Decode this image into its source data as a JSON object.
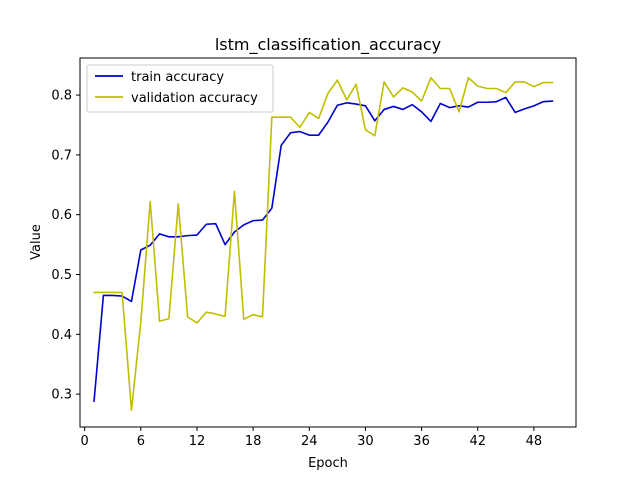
{
  "chart_data": {
    "type": "line",
    "title": "lstm_classification_accuracy",
    "xlabel": "Epoch",
    "ylabel": "Value",
    "xlim": [
      -0.5,
      52.5
    ],
    "ylim": [
      0.245,
      0.862
    ],
    "xticks": [
      0,
      6,
      12,
      18,
      24,
      30,
      36,
      42,
      48
    ],
    "yticks": [
      0.3,
      0.4,
      0.5,
      0.6,
      0.7,
      0.8
    ],
    "grid": false,
    "legend_position": "top-left",
    "x": [
      1,
      2,
      3,
      4,
      5,
      6,
      7,
      8,
      9,
      10,
      11,
      12,
      13,
      14,
      15,
      16,
      17,
      18,
      19,
      20,
      21,
      22,
      23,
      24,
      25,
      26,
      27,
      28,
      29,
      30,
      31,
      32,
      33,
      34,
      35,
      36,
      37,
      38,
      39,
      40,
      41,
      42,
      43,
      44,
      45,
      46,
      47,
      48,
      49,
      50
    ],
    "series": [
      {
        "name": "train accuracy",
        "color": "#0000cc",
        "values": [
          0.288,
          0.465,
          0.465,
          0.464,
          0.455,
          0.541,
          0.549,
          0.568,
          0.563,
          0.563,
          0.565,
          0.566,
          0.584,
          0.585,
          0.55,
          0.571,
          0.583,
          0.59,
          0.591,
          0.611,
          0.716,
          0.737,
          0.739,
          0.733,
          0.733,
          0.755,
          0.783,
          0.787,
          0.785,
          0.782,
          0.757,
          0.776,
          0.781,
          0.776,
          0.784,
          0.772,
          0.756,
          0.786,
          0.779,
          0.782,
          0.78,
          0.788,
          0.788,
          0.789,
          0.796,
          0.771,
          0.777,
          0.782,
          0.789,
          0.79
        ]
      },
      {
        "name": "validation accuracy",
        "color": "#bfbf00",
        "values": [
          0.47,
          0.47,
          0.47,
          0.47,
          0.273,
          0.421,
          0.622,
          0.422,
          0.426,
          0.618,
          0.429,
          0.419,
          0.437,
          0.434,
          0.43,
          0.639,
          0.425,
          0.433,
          0.429,
          0.763,
          0.763,
          0.763,
          0.746,
          0.771,
          0.761,
          0.803,
          0.825,
          0.792,
          0.818,
          0.742,
          0.732,
          0.822,
          0.797,
          0.812,
          0.805,
          0.79,
          0.829,
          0.811,
          0.811,
          0.772,
          0.829,
          0.815,
          0.811,
          0.811,
          0.804,
          0.822,
          0.822,
          0.814,
          0.821,
          0.821
        ]
      }
    ]
  }
}
